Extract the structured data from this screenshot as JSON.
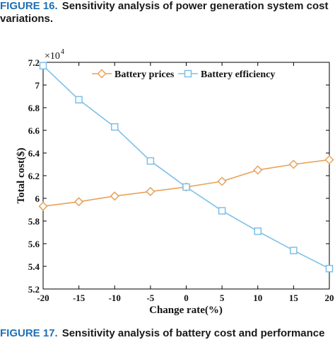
{
  "caption_top": {
    "label": "FIGURE 16.",
    "line1": "Sensitivity analysis of power generation system cost",
    "line2": "variations."
  },
  "caption_bottom": {
    "label": "FIGURE 17.",
    "text": "Sensitivity analysis of battery cost and performance"
  },
  "chart_data": {
    "type": "line",
    "xlabel": "Change rate(%)",
    "ylabel": "Total cost($)",
    "y_multiplier": "×10^4",
    "xlim": [
      -20,
      20
    ],
    "ylim": [
      5.2,
      7.2
    ],
    "x_ticks": [
      "-20",
      "-15",
      "-10",
      "-5",
      "0",
      "5",
      "10",
      "15",
      "20"
    ],
    "y_ticks": [
      "5.2",
      "5.4",
      "5.6",
      "5.8",
      "6",
      "6.2",
      "6.4",
      "6.6",
      "6.8",
      "7",
      "7.2"
    ],
    "x": [
      -20,
      -15,
      -10,
      -5,
      0,
      5,
      10,
      15,
      20
    ],
    "series": [
      {
        "name": "Battery prices",
        "color": "#e8a15a",
        "marker": "diamond",
        "values": [
          5.93,
          5.97,
          6.02,
          6.06,
          6.1,
          6.15,
          6.25,
          6.3,
          6.34
        ]
      },
      {
        "name": "Battery efficiency",
        "color": "#7cc0e8",
        "marker": "square",
        "values": [
          7.17,
          6.87,
          6.63,
          6.33,
          6.1,
          5.89,
          5.71,
          5.54,
          5.38
        ]
      }
    ],
    "legend": "top-center",
    "grid": false
  }
}
